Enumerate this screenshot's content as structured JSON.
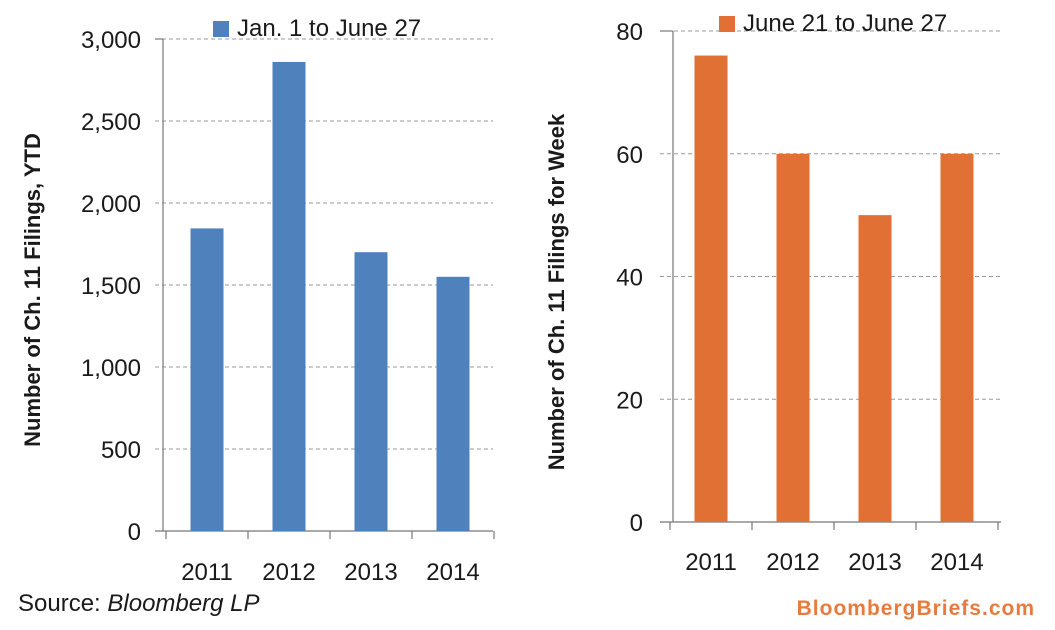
{
  "chart_data": [
    {
      "type": "bar",
      "categories": [
        "2011",
        "2012",
        "2013",
        "2014"
      ],
      "series": [
        {
          "name": "Jan. 1 to June 27",
          "values": [
            1845,
            2860,
            1700,
            1550
          ]
        }
      ],
      "ylabel": "Number of Ch. 11 Filings, YTD",
      "ylim": [
        0,
        3000
      ],
      "yticks": [
        0,
        500,
        1000,
        1500,
        2000,
        2500,
        3000
      ],
      "ytick_labels": [
        "0",
        "500",
        "1,000",
        "1,500",
        "2,000",
        "2,500",
        "3,000"
      ],
      "color": "#4f81bd",
      "grid": true,
      "legend_position": "top"
    },
    {
      "type": "bar",
      "categories": [
        "2011",
        "2012",
        "2013",
        "2014"
      ],
      "series": [
        {
          "name": "June 21 to June 27",
          "values": [
            76,
            60,
            50,
            60
          ]
        }
      ],
      "ylabel": "Number of Ch. 11 Filings for Week",
      "ylim": [
        0,
        80
      ],
      "yticks": [
        0,
        20,
        40,
        60,
        80
      ],
      "ytick_labels": [
        "0",
        "20",
        "40",
        "60",
        "80"
      ],
      "color": "#e07033",
      "grid": true,
      "legend_position": "top"
    }
  ],
  "footer": {
    "source_prefix": "Source: ",
    "source_name": "Bloomberg LP",
    "brand": "BloombergBriefs.com"
  }
}
